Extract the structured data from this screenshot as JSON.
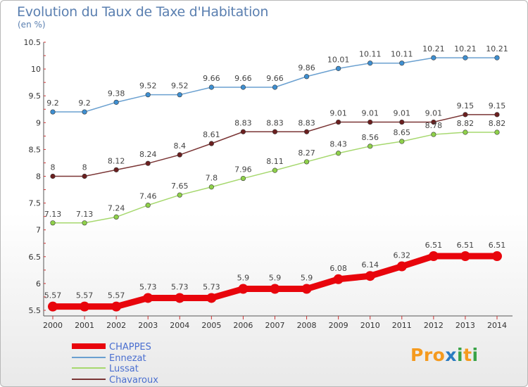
{
  "header": {
    "title": "Evolution du Taux de Taxe d'Habitation",
    "subtitle": "(en %)"
  },
  "logo": {
    "text": "Proxiti",
    "colors": [
      "#f59a1e",
      "#2b7bc1",
      "#39a347"
    ]
  },
  "chart_data": {
    "type": "line",
    "title": "Evolution du Taux de Taxe d'Habitation",
    "ylabel": "(en %)",
    "xlabel": "",
    "x": [
      "2000",
      "2001",
      "2002",
      "2003",
      "2004",
      "2005",
      "2006",
      "2007",
      "2008",
      "2009",
      "2010",
      "2011",
      "2012",
      "2013",
      "2014"
    ],
    "ylim": [
      5.5,
      10.5
    ],
    "yticks": [
      "5.5",
      "6",
      "6.5",
      "7",
      "7.5",
      "8",
      "8.5",
      "9",
      "9.5",
      "10",
      "10.5"
    ],
    "grid": false,
    "legend": "bottom-left",
    "series": [
      {
        "name": "CHAPPES",
        "color": "#e8050c",
        "values": [
          5.57,
          5.57,
          5.57,
          5.73,
          5.73,
          5.73,
          5.9,
          5.9,
          5.9,
          6.08,
          6.14,
          6.32,
          6.51,
          6.51,
          6.51
        ],
        "labels": [
          "5.57",
          "5.57",
          "5.57",
          "5.73",
          "5.73",
          "5.73",
          "5.9",
          "5.9",
          "5.9",
          "6.08",
          "6.14",
          "6.32",
          "6.51",
          "6.51",
          "6.51"
        ]
      },
      {
        "name": "Ennezat",
        "color": "#6aa0d0",
        "marker": "#3e8fd1",
        "values": [
          9.2,
          9.2,
          9.38,
          9.52,
          9.52,
          9.66,
          9.66,
          9.66,
          9.86,
          10.01,
          10.11,
          10.11,
          10.21,
          10.21,
          10.21
        ],
        "labels": [
          "9.2",
          "9.2",
          "9.38",
          "9.52",
          "9.52",
          "9.66",
          "9.66",
          "9.66",
          "9.86",
          "10.01",
          "10.11",
          "10.11",
          "10.21",
          "10.21",
          "10.21"
        ]
      },
      {
        "name": "Lussat",
        "color": "#a6d86e",
        "marker": "#8fd14a",
        "values": [
          7.13,
          7.13,
          7.24,
          7.46,
          7.65,
          7.8,
          7.96,
          8.11,
          8.27,
          8.43,
          8.56,
          8.65,
          8.78,
          8.82,
          8.82
        ],
        "labels": [
          "7.13",
          "7.13",
          "7.24",
          "7.46",
          "7.65",
          "7.8",
          "7.96",
          "8.11",
          "8.27",
          "8.43",
          "8.56",
          "8.65",
          "8.78",
          "8.82",
          "8.82"
        ]
      },
      {
        "name": "Chavaroux",
        "color": "#7a3535",
        "marker": "#6b1f1f",
        "values": [
          8,
          8,
          8.12,
          8.24,
          8.4,
          8.61,
          8.83,
          8.83,
          8.83,
          9.01,
          9.01,
          9.01,
          9.01,
          9.15,
          9.15
        ],
        "labels": [
          "8",
          "8",
          "8.12",
          "8.24",
          "8.4",
          "8.61",
          "8.83",
          "8.83",
          "8.83",
          "9.01",
          "9.01",
          "9.01",
          "9.01",
          "9.15",
          "9.15"
        ]
      }
    ]
  }
}
